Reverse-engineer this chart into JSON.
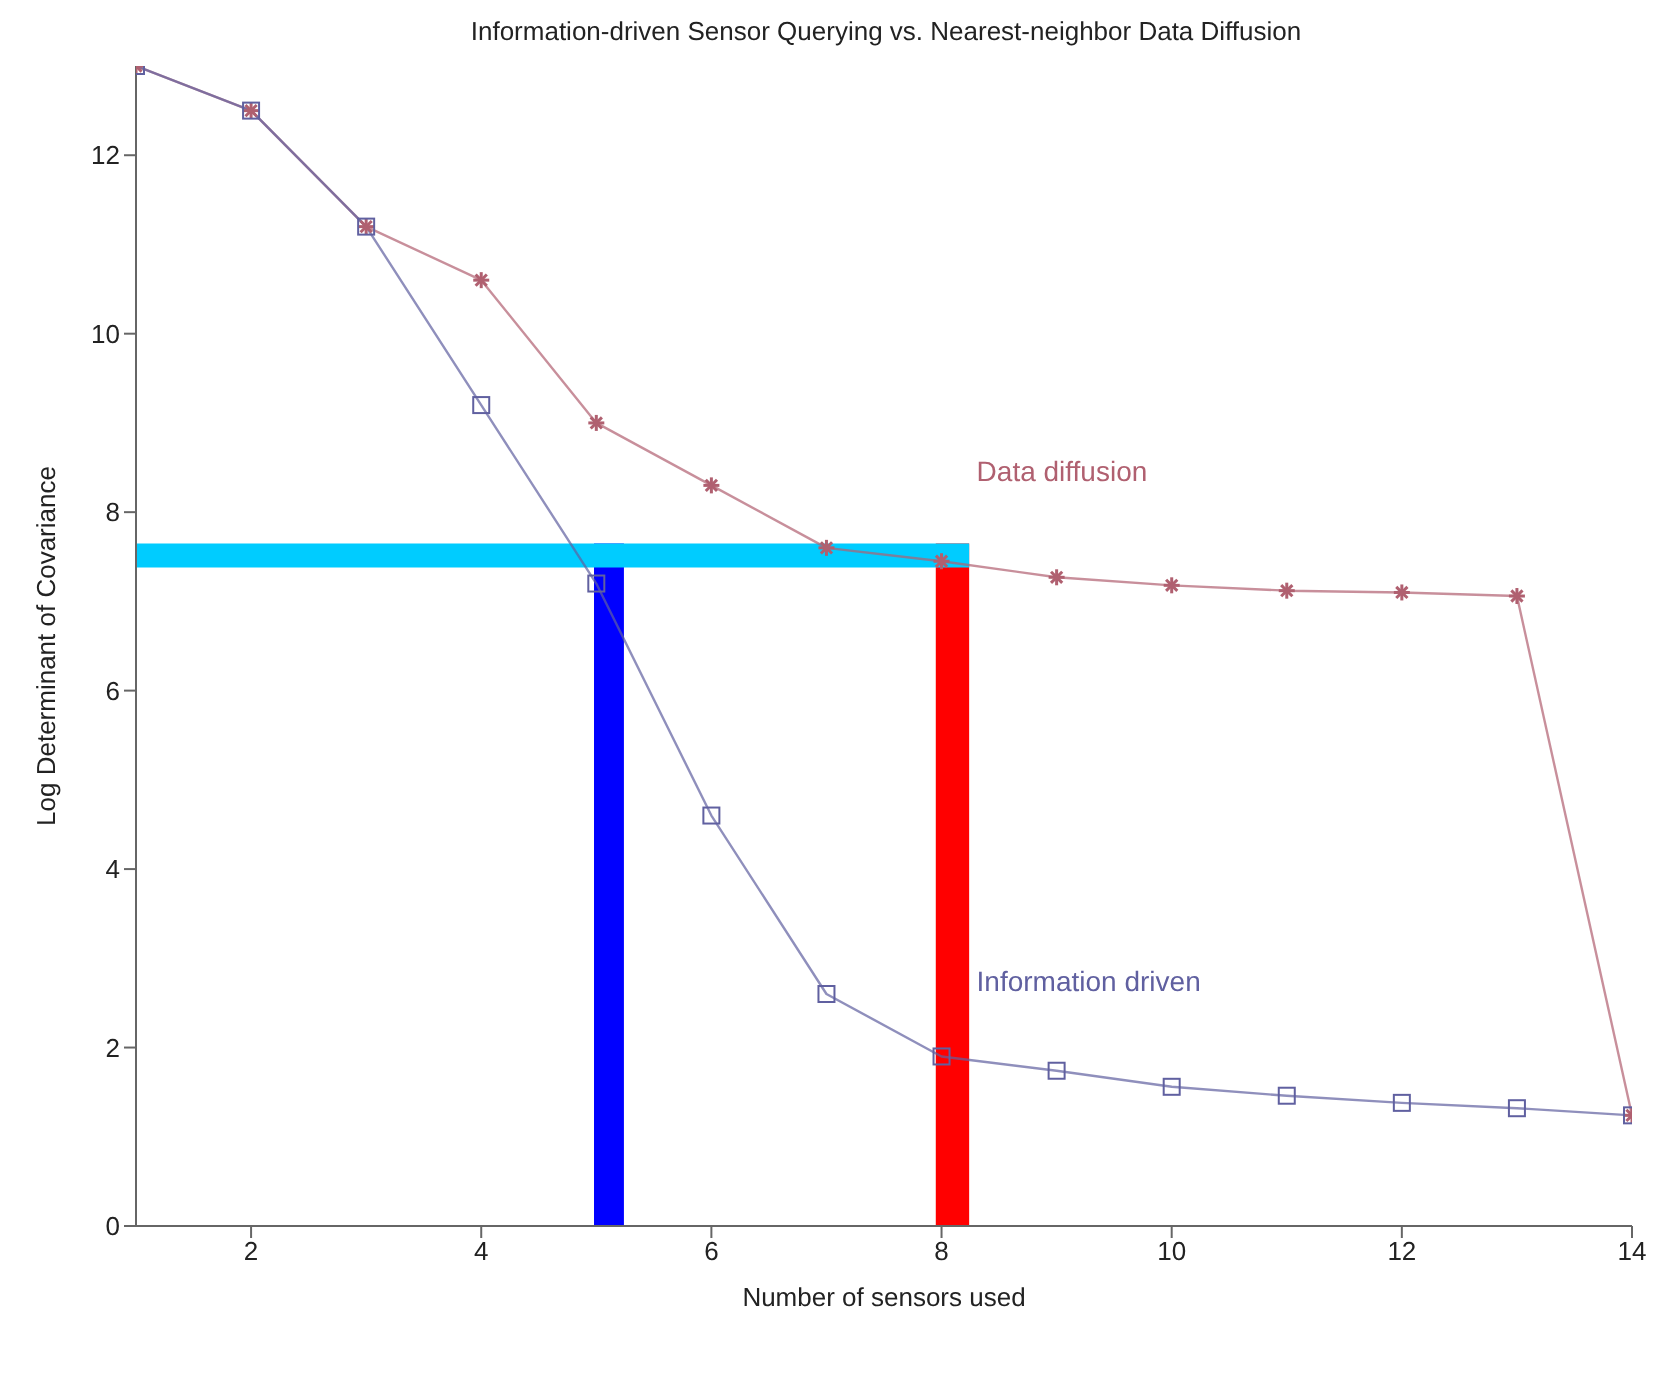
{
  "chart_data": {
    "type": "line",
    "title": "Information-driven Sensor Querying vs. Nearest-neighbor Data Diffusion",
    "xlabel": "Number of sensors used",
    "ylabel": "Log Determinant of Covariance",
    "x": [
      1,
      2,
      3,
      4,
      5,
      6,
      7,
      8,
      9,
      10,
      11,
      12,
      13,
      14
    ],
    "series": [
      {
        "name": "Data diffusion",
        "color": "#b06070",
        "marker": "cross",
        "values": [
          13,
          12.5,
          11.2,
          10.6,
          9.0,
          8.3,
          7.6,
          7.45,
          7.27,
          7.18,
          7.12,
          7.1,
          7.06,
          1.24
        ]
      },
      {
        "name": "Information driven",
        "color": "#6060a0",
        "marker": "square",
        "values": [
          13,
          12.5,
          11.2,
          9.2,
          7.2,
          4.6,
          2.6,
          1.9,
          1.74,
          1.56,
          1.46,
          1.38,
          1.32,
          1.24
        ]
      }
    ],
    "xlim": [
      1,
      14
    ],
    "xticks": [
      2,
      4,
      6,
      8,
      10,
      12,
      14
    ],
    "ylim": [
      0,
      13
    ],
    "yticks": [
      0,
      2,
      4,
      6,
      8,
      10,
      12
    ],
    "bands": [
      {
        "axis": "x",
        "from": 4.98,
        "to": 5.24,
        "color": "#0000ff"
      },
      {
        "axis": "x",
        "from": 7.95,
        "to": 8.24,
        "color": "#ff0000"
      },
      {
        "axis": "y",
        "from": 7.38,
        "to": 7.65,
        "color": "#00ccff"
      }
    ]
  }
}
